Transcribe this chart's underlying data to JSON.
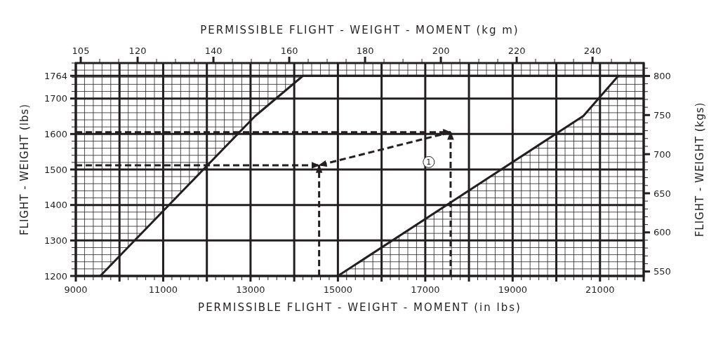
{
  "chart_data": {
    "type": "line",
    "xlabel": "PERMISSIBLE FLIGHT - WEIGHT - MOMENT (in lbs)",
    "x2label": "PERMISSIBLE FLIGHT - WEIGHT - MOMENT (kg m)",
    "ylabel": "FLIGHT - WEIGHT (lbs)",
    "y2label": "FLIGHT - WEIGHT (kgs)",
    "xlim": [
      9000,
      22000
    ],
    "xticks": [
      9000,
      {
        "value": 10000,
        "label": null
      },
      11000,
      {
        "value": 12000,
        "label": null
      },
      13000,
      {
        "value": 14000,
        "label": null
      },
      15000,
      {
        "value": 16000,
        "label": null
      },
      17000,
      {
        "value": 18000,
        "label": null
      },
      19000,
      {
        "value": 20000,
        "label": null
      },
      21000,
      {
        "value": 22000,
        "label": null
      }
    ],
    "x2lim": [
      103.7,
      253.5
    ],
    "x2ticks": [
      105,
      120,
      140,
      160,
      180,
      200,
      220,
      240
    ],
    "ylim": [
      1200,
      1800
    ],
    "yticks": [
      1200,
      1300,
      1400,
      1500,
      1600,
      1700,
      1764
    ],
    "y2lim": [
      544.3,
      816.5
    ],
    "y2ticks": [
      550,
      600,
      650,
      700,
      750,
      800
    ],
    "grid": true,
    "series": [
      {
        "color": "#231f20",
        "line_style": "solid",
        "x": [
          9560,
          13100,
          14200,
          21420,
          20620,
          15000
        ],
        "values": [
          1200,
          1650,
          1764,
          1764,
          1651,
          1200
        ]
      },
      {
        "color": "#231f20",
        "line_style": "dashed",
        "x": [
          9000,
          14570
        ],
        "values": [
          1512,
          1512
        ]
      },
      {
        "color": "#231f20",
        "line_style": "dashed",
        "x": [
          14570,
          14570
        ],
        "values": [
          1200,
          1512
        ]
      },
      {
        "color": "#231f20",
        "line_style": "dashed",
        "x": [
          17580,
          14570
        ],
        "values": [
          1605,
          1512
        ]
      },
      {
        "color": "#231f20",
        "line_style": "dashed",
        "x": [
          9000,
          17580
        ],
        "values": [
          1605,
          1605
        ]
      },
      {
        "color": "#231f20",
        "line_style": "dashed",
        "x": [
          17580,
          17580
        ],
        "values": [
          1200,
          1605
        ]
      }
    ],
    "annotations": [
      {
        "text": "1",
        "x": 17080,
        "y": 1521
      }
    ]
  }
}
